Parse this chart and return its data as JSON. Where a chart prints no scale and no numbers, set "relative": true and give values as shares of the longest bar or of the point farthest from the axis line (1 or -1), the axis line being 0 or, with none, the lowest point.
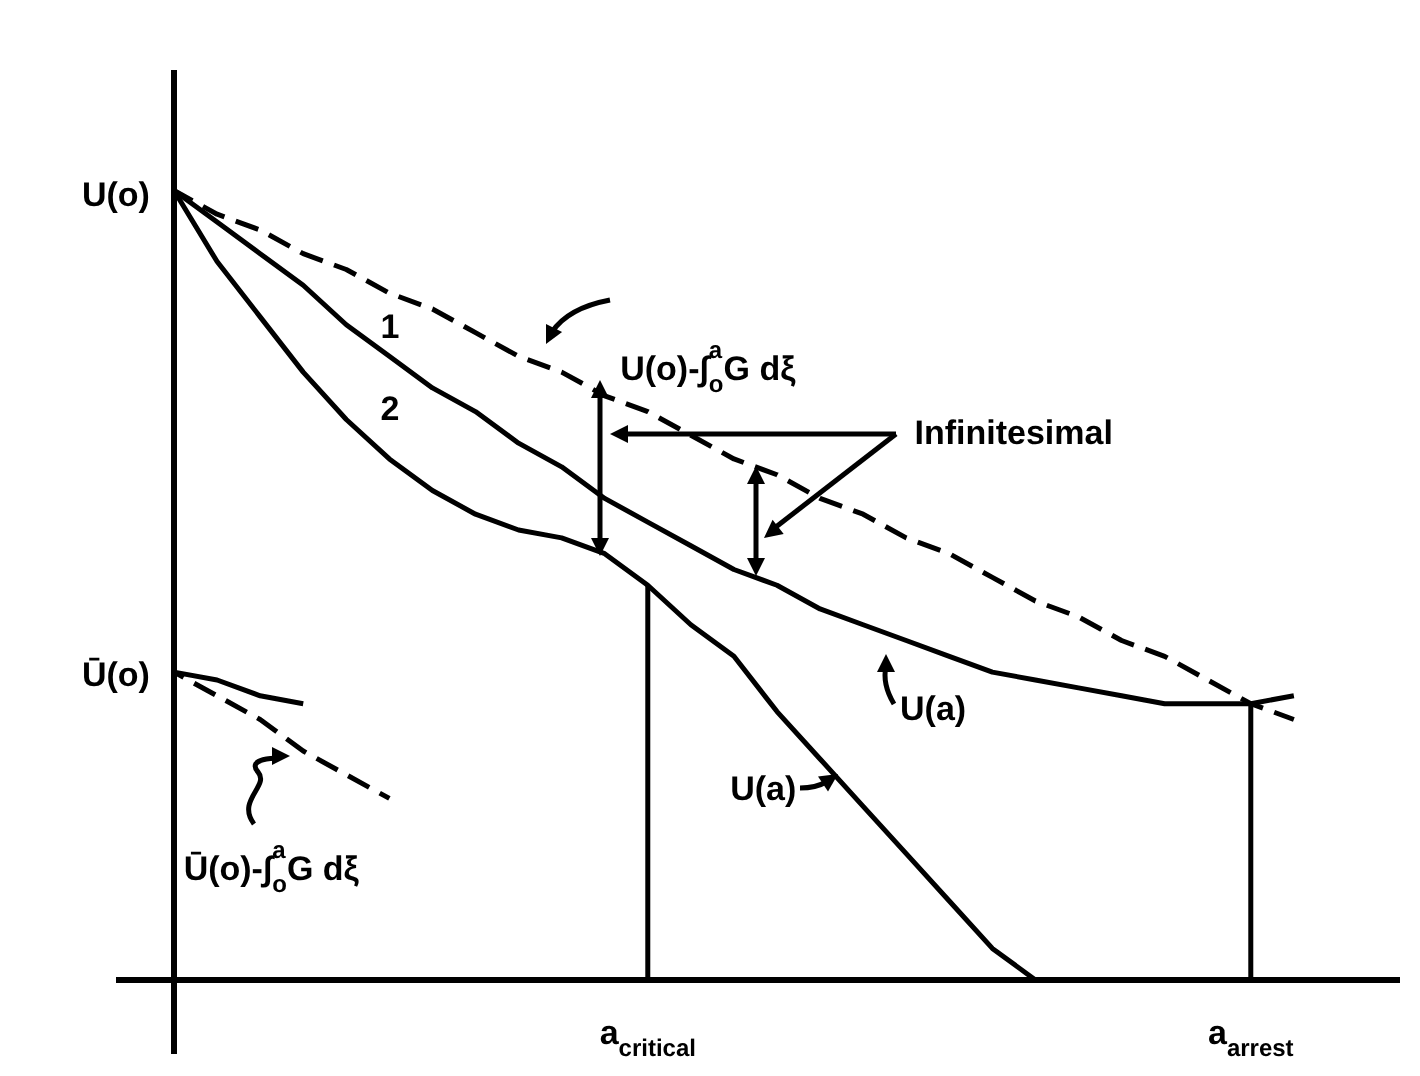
{
  "chart_data": {
    "type": "line",
    "relative": true,
    "marker": "none",
    "tick_labels": "x",
    "categories": [
      null,
      null,
      null,
      null,
      null,
      null,
      null,
      null,
      null,
      null,
      null,
      "a$_{critical}$",
      null,
      null,
      null,
      null,
      null,
      null,
      null,
      null,
      null,
      null,
      null,
      null,
      null,
      "a$_{arrest}$",
      null,
      null,
      null
    ],
    "series": [
      {
        "color": "#000000",
        "line_style": "dashed",
        "values": [
          1,
          0.97,
          0.95,
          0.92,
          0.9,
          0.87,
          0.85,
          0.82,
          0.79,
          0.77,
          0.74,
          0.72,
          0.69,
          0.66,
          0.64,
          0.61,
          0.59,
          0.56,
          0.54,
          0.51,
          0.48,
          0.46,
          0.43,
          0.41,
          0.38,
          0.35,
          0.33,
          null,
          null
        ]
      },
      {
        "color": "#000000",
        "values": [
          1,
          0.96,
          0.92,
          0.88,
          0.83,
          0.79,
          0.75,
          0.72,
          0.68,
          0.65,
          0.61,
          0.58,
          0.55,
          0.52,
          0.5,
          0.47,
          0.45,
          0.43,
          0.41,
          0.39,
          0.38,
          0.37,
          0.36,
          0.35,
          0.35,
          0.35,
          0.36,
          null,
          null
        ]
      },
      {
        "color": "#000000",
        "values": [
          1,
          0.91,
          0.84,
          0.77,
          0.71,
          0.66,
          0.62,
          0.59,
          0.57,
          0.56,
          0.54,
          0.5,
          0.45,
          0.41,
          0.34,
          0.28,
          0.22,
          0.16,
          0.1,
          0.04,
          0,
          null,
          null,
          null,
          null,
          null,
          null,
          null,
          null
        ]
      },
      {
        "color": "#000000",
        "values": [
          0.39,
          0.38,
          0.36,
          0.35,
          null,
          null,
          null,
          null,
          null,
          null,
          null,
          null,
          null,
          null,
          null,
          null,
          null,
          null,
          null,
          null,
          null,
          null,
          null,
          null,
          null,
          null,
          null,
          null,
          null
        ]
      },
      {
        "color": "#000000",
        "line_style": "dashed",
        "values": [
          0.39,
          0.36,
          0.33,
          0.29,
          0.26,
          0.23,
          null,
          null,
          null,
          null,
          null,
          null,
          null,
          null,
          null,
          null,
          null,
          null,
          null,
          null,
          null,
          null,
          null,
          null,
          null,
          null,
          null,
          null,
          null
        ]
      }
    ],
    "ref_lines": [
      {
        "axis": "x",
        "value": "a$_{critical}$",
        "color": "#000000"
      },
      {
        "axis": "x",
        "value": "a$_{arrest}$",
        "color": "#000000"
      }
    ],
    "annotations": [
      "U(o)",
      "Ū(o)",
      "U(o)-∫$_{o}$$^{a}$G dξ",
      "Ū(o)-∫$_{o}$$^{a}$G dξ",
      "1",
      "2",
      "Infinitesimal",
      "U(a)",
      "U(a)"
    ]
  }
}
